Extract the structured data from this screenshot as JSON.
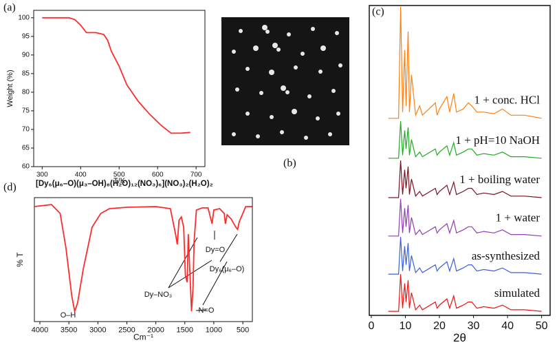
{
  "chart_data": [
    {
      "type": "line",
      "panel_label": "(a)",
      "xlabel": "T/K",
      "ylabel": "Weight (%)",
      "color": "#ff2a2a",
      "x": [
        300,
        370,
        385,
        400,
        415,
        440,
        460,
        470,
        480,
        500,
        520,
        550,
        580,
        610,
        635,
        660,
        685
      ],
      "values": [
        100,
        100,
        99.5,
        98,
        96,
        96,
        95.5,
        94,
        91,
        87,
        82,
        77.5,
        74,
        71,
        69,
        69,
        69.2
      ],
      "xlim": [
        278,
        723
      ],
      "ylim": [
        60,
        102
      ],
      "xticks": [
        300,
        400,
        500,
        600,
        700
      ],
      "yticks": [
        60,
        65,
        70,
        75,
        80,
        85,
        90,
        95,
        100
      ]
    },
    {
      "type": "image",
      "panel_label": "(b)"
    },
    {
      "type": "line",
      "panel_label": "(c)",
      "xlabel": "2θ",
      "x": [
        5,
        8,
        8.6,
        9.2,
        9.8,
        10.2,
        10.8,
        11.2,
        11.8,
        13,
        14.2,
        15,
        18.8,
        19.3,
        20,
        22.2,
        23,
        24.2,
        25,
        27,
        28.5,
        29.5,
        31,
        33,
        36,
        38.5,
        41,
        45,
        50
      ],
      "xlim": [
        -0.6,
        52.5
      ],
      "ylim": [
        0,
        100
      ],
      "xticks": [
        0,
        10,
        20,
        30,
        40,
        50
      ],
      "series": [
        {
          "name": "simulated",
          "color": "#ee1111",
          "values": [
            1.3,
            1.3,
            13.3,
            2.3,
            10.3,
            4.3,
            11.3,
            2.3,
            7.3,
            1.8,
            3.3,
            1.8,
            4.3,
            2.3,
            3.3,
            5.3,
            2.3,
            6.3,
            2.3,
            3.3,
            4.3,
            4.3,
            2.3,
            2.8,
            2.3,
            3.3,
            1.8,
            1.8,
            1.3
          ]
        },
        {
          "name": "as-synthesized",
          "color": "#3a5fd9",
          "values": [
            13.3,
            13.3,
            25.3,
            14.3,
            22.3,
            16.3,
            23.3,
            14.3,
            19.3,
            13.8,
            15.3,
            13.8,
            16.3,
            14.3,
            15.3,
            17.3,
            14.3,
            18.3,
            14.3,
            15.3,
            16.3,
            16.3,
            14.3,
            14.8,
            14.3,
            15.3,
            13.8,
            13.8,
            13.3
          ]
        },
        {
          "name": "1 + water",
          "color": "#8e3fb0",
          "values": [
            25.6,
            25.6,
            37.6,
            26.6,
            34.6,
            28.6,
            35.6,
            26.6,
            31.6,
            26.1,
            27.6,
            26.1,
            28.6,
            26.6,
            27.6,
            29.6,
            26.6,
            30.6,
            26.6,
            27.6,
            28.6,
            28.6,
            26.6,
            27.1,
            26.6,
            27.6,
            26.1,
            26.1,
            25.6
          ]
        },
        {
          "name": "1 + boiling water",
          "color": "#7a1020",
          "values": [
            38,
            38,
            50,
            39,
            47,
            41,
            48,
            39,
            44,
            38.5,
            40,
            38.5,
            41,
            39,
            40,
            42,
            39,
            43,
            39,
            40,
            41,
            41,
            39,
            39.5,
            39,
            40,
            38.5,
            38.5,
            38
          ]
        },
        {
          "name": "1 + pH=10 NaOH",
          "color": "#22aa22",
          "values": [
            50.7,
            50.7,
            62.7,
            51.7,
            59.7,
            53.7,
            60.7,
            51.7,
            56.7,
            51.2,
            52.7,
            51.2,
            53.7,
            51.7,
            52.7,
            54.7,
            51.7,
            55.7,
            51.7,
            52.7,
            53.7,
            53.7,
            51.7,
            52.2,
            51.7,
            52.7,
            51.2,
            51.2,
            50.7
          ]
        },
        {
          "name": "1 + conc. HCl",
          "color": "#ff7f0e",
          "values": [
            63.6,
            63.6,
            99.6,
            65.6,
            85.6,
            67.6,
            91.6,
            65.6,
            77.6,
            64.6,
            67.6,
            64.6,
            68.6,
            64.6,
            66.6,
            70.6,
            65.6,
            71.6,
            65.6,
            66.6,
            68.6,
            67.6,
            65.6,
            65.6,
            65.1,
            66.6,
            64.6,
            64.6,
            63.6
          ]
        }
      ]
    },
    {
      "type": "line",
      "panel_label": "(d)",
      "title": "[Dy₆(μ₆–O)(μ₃–OH)₈(H₂O)₁₂(NO₃)₆](NO₃)₂(H₂O)₂",
      "xlabel": "Cm⁻¹",
      "ylabel": "% T",
      "color": "#ff2a2a",
      "x": [
        4095,
        3800,
        3650,
        3550,
        3450,
        3400,
        3350,
        3250,
        3100,
        2950,
        2800,
        2500,
        2000,
        1750,
        1660,
        1630,
        1600,
        1560,
        1520,
        1490,
        1460,
        1440,
        1420,
        1385,
        1360,
        1340,
        1300,
        1200,
        1100,
        1030,
        1000,
        900,
        820,
        800,
        770,
        700,
        620,
        590,
        560,
        500,
        450,
        400,
        340
      ],
      "values": [
        92.8,
        94.4,
        87.2,
        59.4,
        20.6,
        8.3,
        15,
        42.8,
        76.1,
        87.2,
        91.1,
        92.2,
        92.8,
        91.1,
        70.6,
        62.2,
        81.7,
        84.4,
        76.1,
        37.2,
        31.7,
        70.6,
        48.3,
        8.3,
        26.1,
        65,
        90,
        91.7,
        91.7,
        78.9,
        90,
        91.1,
        87.2,
        78.9,
        86.1,
        82.8,
        76.1,
        74.4,
        80.6,
        87.2,
        92.8,
        92.8,
        92.8
      ],
      "xlim": [
        4095,
        335
      ],
      "ylim": [
        0,
        100
      ],
      "xticks": [
        4000,
        3500,
        3000,
        2500,
        2000,
        1500,
        1000,
        500
      ],
      "annotations": [
        "O–H",
        "Dy–NO₃",
        "N=O",
        "Dy=O",
        "Dy₆(μ₆–O)"
      ]
    }
  ]
}
